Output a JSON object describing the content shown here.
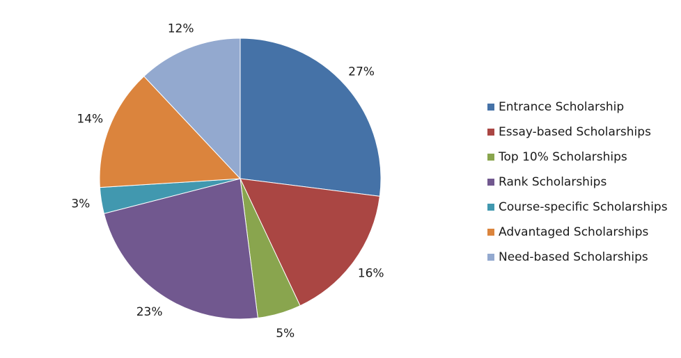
{
  "chart_data": {
    "type": "pie",
    "title": "",
    "legend_position": "right",
    "slices": [
      {
        "label": "Entrance Scholarship",
        "value": 27,
        "display": "27%",
        "color": "#4572A7"
      },
      {
        "label": "Essay-based Scholarships",
        "value": 16,
        "display": "16%",
        "color": "#AA4643"
      },
      {
        "label": "Top 10% Scholarships",
        "value": 5,
        "display": "5%",
        "color": "#89A54E"
      },
      {
        "label": "Rank Scholarships",
        "value": 23,
        "display": "23%",
        "color": "#71588F"
      },
      {
        "label": "Course-specific Scholarships",
        "value": 3,
        "display": "3%",
        "color": "#4198AF"
      },
      {
        "label": "Advantaged Scholarships",
        "value": 14,
        "display": "14%",
        "color": "#DB843D"
      },
      {
        "label": "Need-based Scholarships",
        "value": 12,
        "display": "12%",
        "color": "#93A9CF"
      }
    ]
  }
}
